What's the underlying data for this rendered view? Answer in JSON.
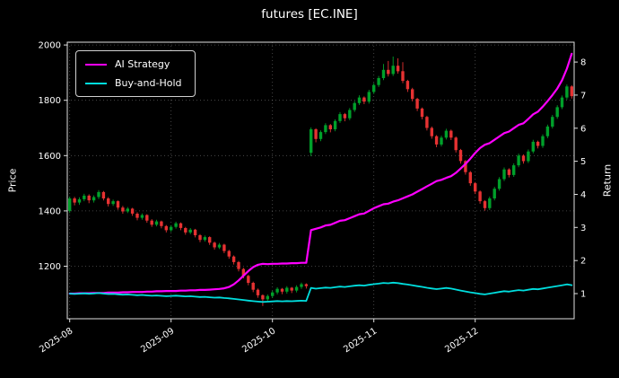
{
  "chart_data": {
    "type": "candlestick",
    "title": "futures [EC.INE]",
    "ylabel_left": "Price",
    "ylabel_right": "Return",
    "x_tick_labels": [
      "2025-08",
      "2025-09",
      "2025-10",
      "2025-11",
      "2025-12"
    ],
    "x_tick_indices": [
      0,
      21,
      42,
      63,
      84
    ],
    "price_ticks": [
      1200,
      1400,
      1600,
      1800,
      2000
    ],
    "return_ticks": [
      1,
      2,
      3,
      4,
      5,
      6,
      7,
      8
    ],
    "price_range": [
      1010,
      2010
    ],
    "return_range": [
      0.24,
      8.6
    ],
    "grid": true,
    "legend_position": "upper-left",
    "legend": [
      {
        "label": "AI Strategy",
        "color": "#ff00ff"
      },
      {
        "label": "Buy-and-Hold",
        "color": "#00dede"
      }
    ],
    "colors": {
      "up": "#00a02a",
      "down": "#e63232",
      "grid": "#999999",
      "bg": "#000000",
      "fg": "#ffffff",
      "spine": "#e0e0e0"
    },
    "candles_ohlc": [
      [
        1400,
        1452,
        1392,
        1445
      ],
      [
        1445,
        1451,
        1420,
        1430
      ],
      [
        1430,
        1449,
        1422,
        1442
      ],
      [
        1442,
        1462,
        1435,
        1455
      ],
      [
        1455,
        1460,
        1428,
        1438
      ],
      [
        1438,
        1456,
        1430,
        1450
      ],
      [
        1450,
        1475,
        1443,
        1468
      ],
      [
        1468,
        1472,
        1438,
        1445
      ],
      [
        1445,
        1450,
        1416,
        1425
      ],
      [
        1425,
        1441,
        1418,
        1435
      ],
      [
        1435,
        1438,
        1404,
        1412
      ],
      [
        1412,
        1418,
        1390,
        1398
      ],
      [
        1398,
        1414,
        1392,
        1408
      ],
      [
        1408,
        1411,
        1382,
        1390
      ],
      [
        1390,
        1395,
        1366,
        1375
      ],
      [
        1375,
        1391,
        1368,
        1385
      ],
      [
        1385,
        1388,
        1357,
        1365
      ],
      [
        1365,
        1370,
        1342,
        1350
      ],
      [
        1350,
        1368,
        1344,
        1362
      ],
      [
        1362,
        1365,
        1337,
        1345
      ],
      [
        1345,
        1349,
        1322,
        1330
      ],
      [
        1330,
        1348,
        1324,
        1342
      ],
      [
        1342,
        1361,
        1336,
        1355
      ],
      [
        1355,
        1358,
        1330,
        1338
      ],
      [
        1338,
        1342,
        1314,
        1322
      ],
      [
        1322,
        1338,
        1316,
        1332
      ],
      [
        1332,
        1335,
        1304,
        1312
      ],
      [
        1312,
        1316,
        1287,
        1295
      ],
      [
        1295,
        1311,
        1289,
        1305
      ],
      [
        1305,
        1308,
        1277,
        1285
      ],
      [
        1285,
        1289,
        1260,
        1268
      ],
      [
        1268,
        1284,
        1262,
        1278
      ],
      [
        1278,
        1281,
        1247,
        1255
      ],
      [
        1255,
        1259,
        1227,
        1235
      ],
      [
        1235,
        1239,
        1206,
        1215
      ],
      [
        1215,
        1219,
        1181,
        1190
      ],
      [
        1190,
        1194,
        1156,
        1165
      ],
      [
        1165,
        1169,
        1131,
        1140
      ],
      [
        1140,
        1144,
        1106,
        1115
      ],
      [
        1115,
        1119,
        1086,
        1095
      ],
      [
        1095,
        1098,
        1056,
        1080
      ],
      [
        1080,
        1098,
        1072,
        1092
      ],
      [
        1092,
        1111,
        1085,
        1105
      ],
      [
        1105,
        1124,
        1098,
        1118
      ],
      [
        1118,
        1121,
        1099,
        1108
      ],
      [
        1108,
        1128,
        1101,
        1122
      ],
      [
        1122,
        1125,
        1103,
        1112
      ],
      [
        1112,
        1131,
        1105,
        1125
      ],
      [
        1125,
        1141,
        1118,
        1135
      ],
      [
        1135,
        1138,
        1119,
        1128
      ],
      [
        1610,
        1702,
        1598,
        1695
      ],
      [
        1695,
        1699,
        1648,
        1660
      ],
      [
        1660,
        1691,
        1652,
        1685
      ],
      [
        1685,
        1717,
        1678,
        1710
      ],
      [
        1710,
        1714,
        1684,
        1695
      ],
      [
        1695,
        1731,
        1688,
        1725
      ],
      [
        1725,
        1757,
        1718,
        1750
      ],
      [
        1750,
        1754,
        1724,
        1735
      ],
      [
        1735,
        1772,
        1728,
        1765
      ],
      [
        1765,
        1797,
        1758,
        1790
      ],
      [
        1790,
        1818,
        1783,
        1810
      ],
      [
        1810,
        1814,
        1786,
        1795
      ],
      [
        1795,
        1838,
        1788,
        1830
      ],
      [
        1830,
        1862,
        1823,
        1855
      ],
      [
        1855,
        1888,
        1848,
        1880
      ],
      [
        1880,
        1931,
        1873,
        1910
      ],
      [
        1910,
        1942,
        1886,
        1895
      ],
      [
        1895,
        1958,
        1888,
        1925
      ],
      [
        1925,
        1952,
        1896,
        1905
      ],
      [
        1905,
        1938,
        1862,
        1870
      ],
      [
        1870,
        1874,
        1830,
        1840
      ],
      [
        1840,
        1845,
        1796,
        1805
      ],
      [
        1805,
        1809,
        1761,
        1770
      ],
      [
        1770,
        1774,
        1731,
        1740
      ],
      [
        1740,
        1744,
        1691,
        1700
      ],
      [
        1700,
        1705,
        1661,
        1670
      ],
      [
        1670,
        1674,
        1630,
        1640
      ],
      [
        1640,
        1672,
        1633,
        1665
      ],
      [
        1665,
        1697,
        1658,
        1690
      ],
      [
        1690,
        1694,
        1656,
        1665
      ],
      [
        1665,
        1669,
        1611,
        1620
      ],
      [
        1620,
        1624,
        1571,
        1580
      ],
      [
        1580,
        1584,
        1531,
        1540
      ],
      [
        1540,
        1544,
        1491,
        1500
      ],
      [
        1500,
        1504,
        1461,
        1470
      ],
      [
        1470,
        1474,
        1426,
        1435
      ],
      [
        1435,
        1439,
        1401,
        1410
      ],
      [
        1410,
        1452,
        1403,
        1445
      ],
      [
        1445,
        1487,
        1438,
        1480
      ],
      [
        1480,
        1522,
        1473,
        1515
      ],
      [
        1515,
        1557,
        1508,
        1550
      ],
      [
        1550,
        1554,
        1521,
        1530
      ],
      [
        1530,
        1572,
        1523,
        1565
      ],
      [
        1565,
        1607,
        1558,
        1600
      ],
      [
        1600,
        1604,
        1571,
        1580
      ],
      [
        1580,
        1622,
        1573,
        1615
      ],
      [
        1615,
        1657,
        1608,
        1650
      ],
      [
        1650,
        1654,
        1626,
        1635
      ],
      [
        1635,
        1677,
        1628,
        1670
      ],
      [
        1670,
        1712,
        1663,
        1705
      ],
      [
        1705,
        1747,
        1698,
        1740
      ],
      [
        1740,
        1782,
        1733,
        1775
      ],
      [
        1775,
        1817,
        1768,
        1810
      ],
      [
        1810,
        1857,
        1803,
        1850
      ],
      [
        1850,
        1854,
        1806,
        1815
      ]
    ],
    "series": [
      {
        "name": "AI Strategy",
        "axis": "return",
        "color": "#ff00ff",
        "width": 2.2,
        "values": [
          1.0,
          1.0,
          1.01,
          1.01,
          1.01,
          1.02,
          1.02,
          1.02,
          1.03,
          1.03,
          1.03,
          1.04,
          1.04,
          1.05,
          1.05,
          1.05,
          1.06,
          1.06,
          1.07,
          1.07,
          1.08,
          1.08,
          1.08,
          1.09,
          1.09,
          1.1,
          1.1,
          1.11,
          1.11,
          1.12,
          1.13,
          1.14,
          1.16,
          1.2,
          1.28,
          1.4,
          1.54,
          1.68,
          1.8,
          1.87,
          1.9,
          1.89,
          1.9,
          1.9,
          1.91,
          1.91,
          1.92,
          1.92,
          1.93,
          1.93,
          2.92,
          2.96,
          3.0,
          3.06,
          3.08,
          3.14,
          3.2,
          3.22,
          3.28,
          3.34,
          3.4,
          3.42,
          3.5,
          3.58,
          3.64,
          3.7,
          3.72,
          3.78,
          3.82,
          3.88,
          3.94,
          4.0,
          4.08,
          4.16,
          4.24,
          4.32,
          4.4,
          4.44,
          4.5,
          4.55,
          4.65,
          4.78,
          4.92,
          5.08,
          5.25,
          5.4,
          5.5,
          5.55,
          5.65,
          5.75,
          5.85,
          5.9,
          6.0,
          6.1,
          6.15,
          6.28,
          6.42,
          6.5,
          6.65,
          6.82,
          7.0,
          7.2,
          7.45,
          7.8,
          8.25
        ]
      },
      {
        "name": "Buy-and-Hold",
        "axis": "return",
        "color": "#00dede",
        "width": 1.8,
        "values": [
          1.0,
          0.99,
          0.998,
          1.007,
          0.995,
          1.003,
          1.016,
          1.0,
          0.986,
          0.993,
          0.977,
          0.967,
          0.974,
          0.962,
          0.952,
          0.958,
          0.945,
          0.934,
          0.943,
          0.931,
          0.92,
          0.929,
          0.938,
          0.926,
          0.915,
          0.922,
          0.908,
          0.896,
          0.903,
          0.889,
          0.878,
          0.884,
          0.868,
          0.855,
          0.841,
          0.823,
          0.806,
          0.789,
          0.772,
          0.758,
          0.747,
          0.756,
          0.765,
          0.774,
          0.767,
          0.776,
          0.77,
          0.778,
          0.785,
          0.781,
          1.173,
          1.149,
          1.166,
          1.183,
          1.173,
          1.194,
          1.211,
          1.201,
          1.221,
          1.239,
          1.253,
          1.242,
          1.266,
          1.284,
          1.301,
          1.322,
          1.311,
          1.332,
          1.318,
          1.294,
          1.273,
          1.249,
          1.225,
          1.204,
          1.176,
          1.156,
          1.135,
          1.152,
          1.17,
          1.152,
          1.121,
          1.093,
          1.066,
          1.038,
          1.017,
          0.993,
          0.976,
          1.0,
          1.024,
          1.048,
          1.073,
          1.059,
          1.083,
          1.107,
          1.093,
          1.118,
          1.142,
          1.131,
          1.156,
          1.18,
          1.204,
          1.228,
          1.253,
          1.28,
          1.256
        ]
      }
    ]
  }
}
